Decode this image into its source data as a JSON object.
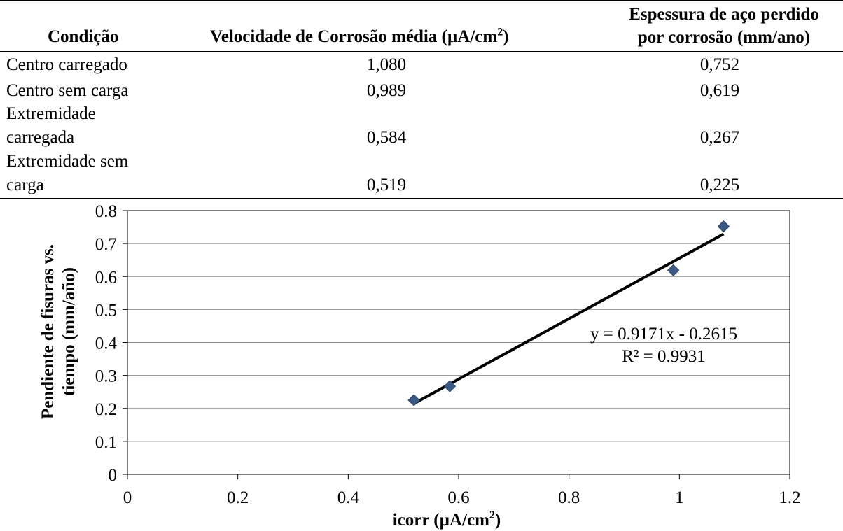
{
  "table": {
    "headers": {
      "condition": "Condição",
      "velocity_text": "Velocidade de Corrosão média (µA/cm",
      "velocity_sup": "2",
      "velocity_close": ")",
      "thickness_line1": "Espessura de aço perdido",
      "thickness_line2": "por corrosão (mm/ano)"
    },
    "rows": [
      {
        "condition": [
          "Centro carregado"
        ],
        "velocity": "1,080",
        "thickness": "0,752"
      },
      {
        "condition": [
          "Centro sem carga"
        ],
        "velocity": "0,989",
        "thickness": "0,619"
      },
      {
        "condition": [
          "Extremidade",
          "carregada"
        ],
        "velocity": "0,584",
        "thickness": "0,267"
      },
      {
        "condition": [
          "Extremidade sem",
          "carga"
        ],
        "velocity": "0,519",
        "thickness": "0,225"
      }
    ]
  },
  "chart_data": {
    "type": "scatter",
    "title": "",
    "xlabel": "icorr (µA/cm",
    "xlabel_sup": "2",
    "xlabel_close": ")",
    "ylabel_line1": "Pendiente de fisuras vs.",
    "ylabel_line2": "tiempo (mm/año)",
    "xlim": [
      0,
      1.2
    ],
    "ylim": [
      0,
      0.8
    ],
    "xticks": [
      0,
      0.2,
      0.4,
      0.6,
      0.8,
      1,
      1.2
    ],
    "xtick_labels": [
      "0",
      "0.2",
      "0.4",
      "0.6",
      "0.8",
      "1",
      "1.2"
    ],
    "yticks": [
      0,
      0.1,
      0.2,
      0.3,
      0.4,
      0.5,
      0.6,
      0.7,
      0.8
    ],
    "ytick_labels": [
      "0",
      "0.1",
      "0.2",
      "0.3",
      "0.4",
      "0.5",
      "0.6",
      "0.7",
      "0.8"
    ],
    "grid": "horizontal",
    "series": [
      {
        "name": "data",
        "marker": "diamond",
        "color": "#3a5a85",
        "x": [
          1.08,
          0.989,
          0.584,
          0.519
        ],
        "y": [
          0.752,
          0.619,
          0.267,
          0.225
        ]
      }
    ],
    "trendline": {
      "type": "linear",
      "slope": 0.9171,
      "intercept": -0.2615,
      "x_range": [
        0.519,
        1.08
      ],
      "color": "#000000"
    },
    "annotations": {
      "equation": "y = 0.9171x - 0.2615",
      "r_squared": "R² = 0.9931"
    }
  }
}
